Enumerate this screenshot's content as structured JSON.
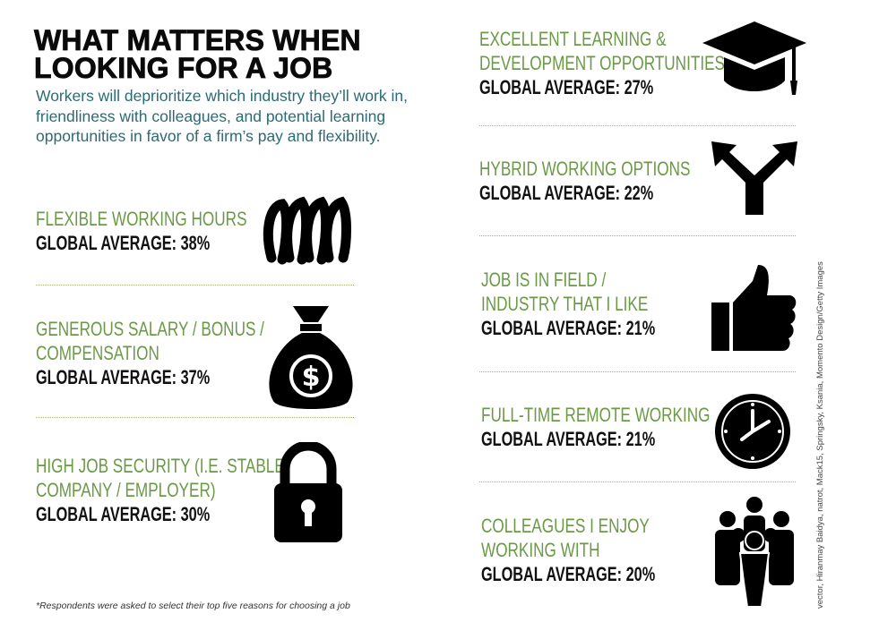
{
  "header": {
    "title_line1": "WHAT MATTERS WHEN",
    "title_line2": "LOOKING FOR A JOB",
    "subtitle": "Workers will deprioritize which industry they’ll work in, friendliness with colleagues, and potential learning opportunities in favor of a firm’s pay and flexibility."
  },
  "items": [
    {
      "label1": "FLEXIBLE WORKING HOURS",
      "label2": "",
      "pct": "GLOBAL AVERAGE: 38%",
      "value": 38,
      "icon": "spring-icon"
    },
    {
      "label1": "GENEROUS SALARY / BONUS /",
      "label2": "COMPENSATION",
      "pct": "GLOBAL AVERAGE: 37%",
      "value": 37,
      "icon": "money-bag-icon"
    },
    {
      "label1": "HIGH JOB SECURITY (I.E. STABLE",
      "label2": "COMPANY / EMPLOYER)",
      "pct": "GLOBAL AVERAGE: 30%",
      "value": 30,
      "icon": "padlock-icon"
    },
    {
      "label1": "EXCELLENT LEARNING &",
      "label2": "DEVELOPMENT OPPORTUNITIES",
      "pct": "GLOBAL AVERAGE: 27%",
      "value": 27,
      "icon": "graduation-cap-icon"
    },
    {
      "label1": "HYBRID WORKING OPTIONS",
      "label2": "",
      "pct": "GLOBAL AVERAGE: 22%",
      "value": 22,
      "icon": "fork-arrow-icon"
    },
    {
      "label1": "JOB IS IN FIELD /",
      "label2": "INDUSTRY THAT I LIKE",
      "pct": "GLOBAL AVERAGE: 21%",
      "value": 21,
      "icon": "thumbs-up-icon"
    },
    {
      "label1": "FULL-TIME REMOTE WORKING",
      "label2": "",
      "pct": "GLOBAL AVERAGE: 21%",
      "value": 21,
      "icon": "clock-icon"
    },
    {
      "label1": "COLLEAGUES I ENJOY",
      "label2": "WORKING WITH",
      "pct": "GLOBAL AVERAGE: 20%",
      "value": 20,
      "icon": "people-group-icon"
    }
  ],
  "footnote": "*Respondents were asked to select their top five reasons for choosing a job",
  "credit": "vector, Hiranmay Baidya, natrot, Mack15, Springsky, Ksania, Momento Design/Getty Images",
  "colors": {
    "label": "#6b9a46",
    "subtitle": "#2b6b76",
    "text": "#111111"
  }
}
